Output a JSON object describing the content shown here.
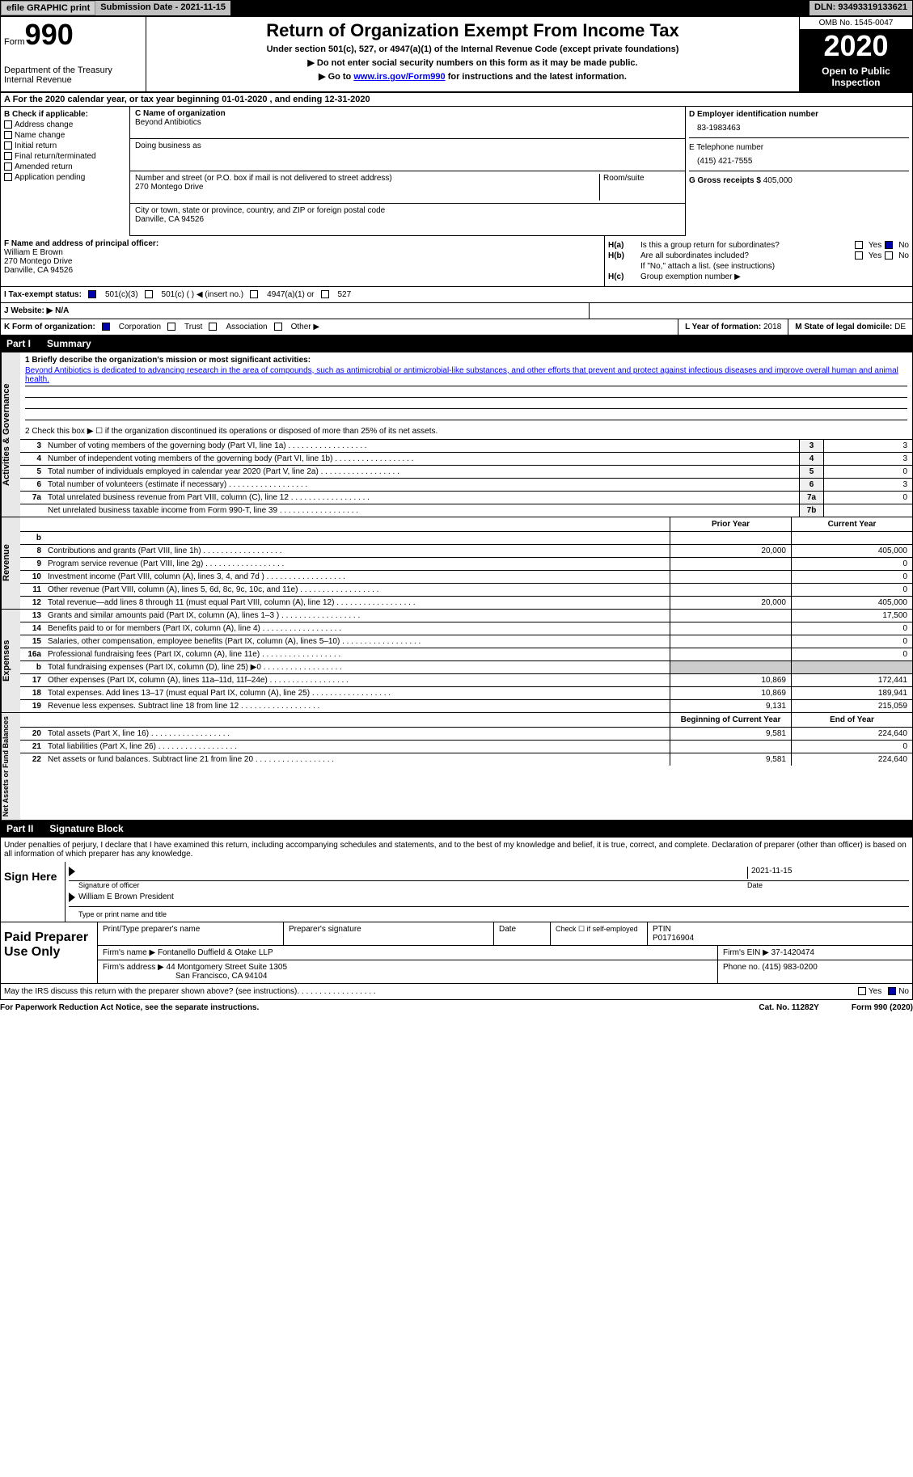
{
  "topbar": {
    "btn1": "efile GRAPHIC print",
    "subdate_label": "Submission Date - ",
    "subdate": "2021-11-15",
    "dln_label": "DLN: ",
    "dln": "93493319133621"
  },
  "header": {
    "form_word": "Form",
    "form_num": "990",
    "dept": "Department of the Treasury\nInternal Revenue",
    "title": "Return of Organization Exempt From Income Tax",
    "subtitle": "Under section 501(c), 527, or 4947(a)(1) of the Internal Revenue Code (except private foundations)",
    "instr1": "▶ Do not enter social security numbers on this form as it may be made public.",
    "instr2_pre": "▶ Go to ",
    "instr2_link": "www.irs.gov/Form990",
    "instr2_post": " for instructions and the latest information.",
    "omb": "OMB No. 1545-0047",
    "year": "2020",
    "inspection": "Open to Public Inspection"
  },
  "rowA": "A For the 2020 calendar year, or tax year beginning 01-01-2020   , and ending 12-31-2020",
  "boxB": {
    "label": "B Check if applicable:",
    "items": [
      "Address change",
      "Name change",
      "Initial return",
      "Final return/terminated",
      "Amended return",
      "Application pending"
    ]
  },
  "boxC": {
    "name_label": "C Name of organization",
    "name": "Beyond Antibiotics",
    "dba_label": "Doing business as",
    "dba": "",
    "street_label": "Number and street (or P.O. box if mail is not delivered to street address)",
    "street": "270 Montego Drive",
    "room_label": "Room/suite",
    "city_label": "City or town, state or province, country, and ZIP or foreign postal code",
    "city": "Danville, CA  94526"
  },
  "boxD": {
    "ein_label": "D Employer identification number",
    "ein": "83-1983463",
    "phone_label": "E Telephone number",
    "phone": "(415) 421-7555",
    "gross_label": "G Gross receipts $ ",
    "gross": "405,000"
  },
  "boxF": {
    "label": "F  Name and address of principal officer:",
    "name": "William E Brown",
    "addr1": "270 Montego Drive",
    "addr2": "Danville, CA  94526"
  },
  "boxH": {
    "ha_label": "H(a)",
    "ha_text": "Is this a group return for subordinates?",
    "hb_label": "H(b)",
    "hb_text": "Are all subordinates included?",
    "hb_note": "If \"No,\" attach a list. (see instructions)",
    "hc_label": "H(c)",
    "hc_text": "Group exemption number ▶",
    "yes": "Yes",
    "no": "No"
  },
  "rowI": {
    "label": "I   Tax-exempt status:",
    "opt1": "501(c)(3)",
    "opt2": "501(c) (  ) ◀ (insert no.)",
    "opt3": "4947(a)(1) or",
    "opt4": "527"
  },
  "rowJ": {
    "label": "J   Website: ▶",
    "value": "N/A"
  },
  "rowK": {
    "label": "K Form of organization:",
    "opts": [
      "Corporation",
      "Trust",
      "Association",
      "Other ▶"
    ],
    "l_label": "L Year of formation: ",
    "l_val": "2018",
    "m_label": "M State of legal domicile: ",
    "m_val": "DE"
  },
  "part1": {
    "num": "Part I",
    "title": "Summary"
  },
  "governance": {
    "vlabel": "Activities & Governance",
    "q1_label": "1  Briefly describe the organization's mission or most significant activities:",
    "q1_text": "Beyond Antibiotics is dedicated to advancing research in the area of compounds, such as antimicrobial or antimicrobial-like substances, and other efforts that prevent and protect against infectious diseases and improve overall human and animal health.",
    "q2": "2    Check this box ▶ ☐  if the organization discontinued its operations or disposed of more than 25% of its net assets.",
    "rows": [
      {
        "n": "3",
        "label": "Number of voting members of the governing body (Part VI, line 1a)",
        "box": "3",
        "val": "3"
      },
      {
        "n": "4",
        "label": "Number of independent voting members of the governing body (Part VI, line 1b)",
        "box": "4",
        "val": "3"
      },
      {
        "n": "5",
        "label": "Total number of individuals employed in calendar year 2020 (Part V, line 2a)",
        "box": "5",
        "val": "0"
      },
      {
        "n": "6",
        "label": "Total number of volunteers (estimate if necessary)",
        "box": "6",
        "val": "3"
      },
      {
        "n": "7a",
        "label": "Total unrelated business revenue from Part VIII, column (C), line 12",
        "box": "7a",
        "val": "0"
      },
      {
        "n": "",
        "label": "Net unrelated business taxable income from Form 990-T, line 39",
        "box": "7b",
        "val": ""
      }
    ]
  },
  "revenue": {
    "vlabel": "Revenue",
    "col1": "Prior Year",
    "col2": "Current Year",
    "rows": [
      {
        "n": "b",
        "label": "",
        "v1": "",
        "v2": "",
        "top": true
      },
      {
        "n": "8",
        "label": "Contributions and grants (Part VIII, line 1h)",
        "v1": "20,000",
        "v2": "405,000"
      },
      {
        "n": "9",
        "label": "Program service revenue (Part VIII, line 2g)",
        "v1": "",
        "v2": "0"
      },
      {
        "n": "10",
        "label": "Investment income (Part VIII, column (A), lines 3, 4, and 7d )",
        "v1": "",
        "v2": "0"
      },
      {
        "n": "11",
        "label": "Other revenue (Part VIII, column (A), lines 5, 6d, 8c, 9c, 10c, and 11e)",
        "v1": "",
        "v2": "0"
      },
      {
        "n": "12",
        "label": "Total revenue—add lines 8 through 11 (must equal Part VIII, column (A), line 12)",
        "v1": "20,000",
        "v2": "405,000"
      }
    ]
  },
  "expenses": {
    "vlabel": "Expenses",
    "rows": [
      {
        "n": "13",
        "label": "Grants and similar amounts paid (Part IX, column (A), lines 1–3 )",
        "v1": "",
        "v2": "17,500"
      },
      {
        "n": "14",
        "label": "Benefits paid to or for members (Part IX, column (A), line 4)",
        "v1": "",
        "v2": "0"
      },
      {
        "n": "15",
        "label": "Salaries, other compensation, employee benefits (Part IX, column (A), lines 5–10)",
        "v1": "",
        "v2": "0"
      },
      {
        "n": "16a",
        "label": "Professional fundraising fees (Part IX, column (A), line 11e)",
        "v1": "",
        "v2": "0"
      },
      {
        "n": "b",
        "label": "Total fundraising expenses (Part IX, column (D), line 25) ▶0",
        "v1": "shaded",
        "v2": "shaded"
      },
      {
        "n": "17",
        "label": "Other expenses (Part IX, column (A), lines 11a–11d, 11f–24e)",
        "v1": "10,869",
        "v2": "172,441"
      },
      {
        "n": "18",
        "label": "Total expenses. Add lines 13–17 (must equal Part IX, column (A), line 25)",
        "v1": "10,869",
        "v2": "189,941"
      },
      {
        "n": "19",
        "label": "Revenue less expenses. Subtract line 18 from line 12",
        "v1": "9,131",
        "v2": "215,059"
      }
    ]
  },
  "netassets": {
    "vlabel": "Net Assets or Fund Balances",
    "col1": "Beginning of Current Year",
    "col2": "End of Year",
    "rows": [
      {
        "n": "20",
        "label": "Total assets (Part X, line 16)",
        "v1": "9,581",
        "v2": "224,640"
      },
      {
        "n": "21",
        "label": "Total liabilities (Part X, line 26)",
        "v1": "",
        "v2": "0"
      },
      {
        "n": "22",
        "label": "Net assets or fund balances. Subtract line 21 from line 20",
        "v1": "9,581",
        "v2": "224,640"
      }
    ]
  },
  "part2": {
    "num": "Part II",
    "title": "Signature Block"
  },
  "sig": {
    "text": "Under penalties of perjury, I declare that I have examined this return, including accompanying schedules and statements, and to the best of my knowledge and belief, it is true, correct, and complete. Declaration of preparer (other than officer) is based on all information of which preparer has any knowledge.",
    "sign_here": "Sign Here",
    "sig_label": "Signature of officer",
    "date_label": "Date",
    "date": "2021-11-15",
    "name": "William E Brown  President",
    "name_label": "Type or print name and title"
  },
  "prep": {
    "label": "Paid Preparer Use Only",
    "h1": "Print/Type preparer's name",
    "h2": "Preparer's signature",
    "h3": "Date",
    "h4_check": "Check ☐ if self-employed",
    "h5": "PTIN",
    "ptin": "P01716904",
    "firm_name_label": "Firm's name    ▶ ",
    "firm_name": "Fontanello Duffield & Otake LLP",
    "firm_ein_label": "Firm's EIN ▶ ",
    "firm_ein": "37-1420474",
    "firm_addr_label": "Firm's address ▶ ",
    "firm_addr1": "44 Montgomery Street Suite 1305",
    "firm_addr2": "San Francisco, CA  94104",
    "phone_label": "Phone no. ",
    "phone": "(415) 983-0200"
  },
  "footer": {
    "discuss": "May the IRS discuss this return with the preparer shown above? (see instructions)",
    "yes": "Yes",
    "no": "No",
    "paperwork": "For Paperwork Reduction Act Notice, see the separate instructions.",
    "cat": "Cat. No. 11282Y",
    "form": "Form 990 (2020)"
  }
}
